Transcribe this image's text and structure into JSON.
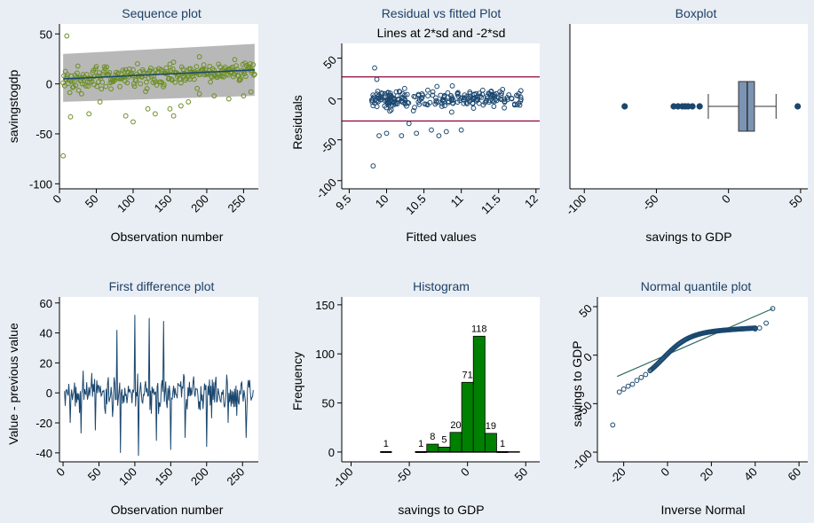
{
  "chart_data": [
    {
      "type": "scatter",
      "title": "Sequence plot",
      "xlabel": "Observation number",
      "ylabel": "savingstogdp",
      "xlim": [
        0,
        270
      ],
      "ylim": [
        -105,
        60
      ],
      "xticks": [
        0,
        50,
        100,
        150,
        200,
        250
      ],
      "yticks": [
        50,
        0,
        -50,
        -100
      ],
      "fitted_line": {
        "x": [
          5,
          265
        ],
        "y": [
          5,
          14
        ]
      },
      "ci_band": {
        "x": [
          5,
          265
        ],
        "upper": [
          30,
          40
        ],
        "lower": [
          -18,
          -12
        ]
      },
      "outlier_points": [
        [
          5,
          -72
        ],
        [
          10,
          48
        ],
        [
          15,
          -33
        ],
        [
          30,
          -10
        ],
        [
          40,
          -30
        ],
        [
          55,
          -18
        ],
        [
          70,
          -5
        ],
        [
          90,
          -32
        ],
        [
          100,
          -38
        ],
        [
          120,
          -25
        ],
        [
          130,
          -30
        ],
        [
          150,
          -25
        ],
        [
          155,
          -32
        ],
        [
          165,
          -22
        ],
        [
          175,
          -18
        ],
        [
          190,
          -10
        ],
        [
          210,
          -12
        ],
        [
          230,
          -15
        ],
        [
          250,
          -12
        ],
        [
          260,
          -8
        ]
      ],
      "point_color": "#6b8e23",
      "band_color": "#b8b8b8",
      "line_color": "#1a476f"
    },
    {
      "type": "scatter",
      "title": "Residual vs fitted Plot",
      "subtitle": "Lines at 2*sd and -2*sd",
      "xlabel": "Fitted values",
      "ylabel": "Residuals",
      "xlim": [
        9.4,
        12.05
      ],
      "ylim": [
        -110,
        68
      ],
      "xticks": [
        9.5,
        10,
        10.5,
        11,
        11.5,
        12
      ],
      "yticks": [
        50,
        0,
        -50,
        -100
      ],
      "reference_lines": [
        27,
        -27
      ],
      "outlier_points": [
        [
          9.82,
          -82
        ],
        [
          9.84,
          38
        ],
        [
          9.87,
          24
        ],
        [
          9.9,
          -45
        ],
        [
          10.0,
          -42
        ],
        [
          10.2,
          -45
        ],
        [
          10.3,
          -30
        ],
        [
          10.4,
          -42
        ],
        [
          10.6,
          -38
        ],
        [
          10.7,
          -45
        ],
        [
          10.8,
          -40
        ],
        [
          11.0,
          -38
        ]
      ],
      "point_color": "#1a476f",
      "line_color": "#90003a"
    },
    {
      "type": "box",
      "title": "Boxplot",
      "xlabel": "savings to GDP",
      "xlim": [
        -110,
        55
      ],
      "xticks": [
        -100,
        -50,
        0,
        50
      ],
      "q1": 7,
      "median": 13,
      "q3": 18,
      "whisker_low": -14,
      "whisker_high": 33,
      "outliers": [
        -72,
        -38,
        -35,
        -32,
        -30,
        -28,
        -25,
        -20,
        48
      ],
      "box_color": "#7b94b4"
    },
    {
      "type": "line",
      "title": "First difference plot",
      "xlabel": "Observation number",
      "ylabel": "Value - previous value",
      "xlim": [
        -5,
        272
      ],
      "ylim": [
        -46,
        64
      ],
      "xticks": [
        0,
        50,
        100,
        150,
        200,
        250
      ],
      "yticks": [
        60,
        40,
        20,
        0,
        -20,
        -40
      ],
      "spikes_high": [
        [
          45,
          48
        ],
        [
          75,
          42
        ],
        [
          100,
          52
        ],
        [
          120,
          50
        ],
        [
          140,
          48
        ],
        [
          170,
          45
        ],
        [
          200,
          46
        ],
        [
          230,
          35
        ],
        [
          255,
          48
        ]
      ],
      "spikes_low": [
        [
          10,
          -20
        ],
        [
          25,
          -27
        ],
        [
          45,
          -25
        ],
        [
          80,
          -40
        ],
        [
          105,
          -42
        ],
        [
          130,
          -32
        ],
        [
          150,
          -38
        ],
        [
          170,
          -30
        ],
        [
          200,
          -36
        ],
        [
          230,
          -20
        ],
        [
          255,
          -30
        ]
      ],
      "line_color": "#1a476f"
    },
    {
      "type": "bar",
      "title": "Histogram",
      "xlabel": "savings to GDP",
      "ylabel": "Frequency",
      "xlim": [
        -108,
        62
      ],
      "ylim": [
        -10,
        158
      ],
      "xticks": [
        -100,
        -50,
        0,
        50
      ],
      "yticks": [
        0,
        50,
        100,
        150
      ],
      "bins": [
        {
          "x0": -75,
          "x1": -65,
          "count": 1,
          "label": "1"
        },
        {
          "x0": -45,
          "x1": -35,
          "count": 1,
          "label": "1"
        },
        {
          "x0": -35,
          "x1": -25,
          "count": 8,
          "label": "8"
        },
        {
          "x0": -25,
          "x1": -15,
          "count": 5,
          "label": "5"
        },
        {
          "x0": -15,
          "x1": -5,
          "count": 20,
          "label": "20"
        },
        {
          "x0": -5,
          "x1": 5,
          "count": 71,
          "label": "71"
        },
        {
          "x0": 5,
          "x1": 15,
          "count": 118,
          "label": "118"
        },
        {
          "x0": 15,
          "x1": 25,
          "count": 19,
          "label": "19"
        },
        {
          "x0": 25,
          "x1": 35,
          "count": 1,
          "label": "1"
        }
      ],
      "bar_color": "#008000"
    },
    {
      "type": "scatter",
      "title": "Normal quantile plot",
      "xlabel": "Inverse Normal",
      "ylabel": "savings to GDP",
      "xlim": [
        -32,
        64
      ],
      "ylim": [
        -110,
        60
      ],
      "xticks": [
        -20,
        0,
        20,
        40,
        60
      ],
      "yticks": [
        50,
        0,
        -50,
        -100
      ],
      "reference_line": {
        "x": [
          -23,
          48
        ],
        "y": [
          -22,
          48
        ]
      },
      "outlier_points": [
        [
          -25,
          -72
        ],
        [
          -22,
          -38
        ],
        [
          -20,
          -35
        ],
        [
          -18,
          -32
        ],
        [
          -16,
          -30
        ],
        [
          -14,
          -26
        ],
        [
          -12,
          -23
        ],
        [
          -10,
          -20
        ],
        [
          40,
          27
        ],
        [
          42,
          28
        ],
        [
          45,
          33
        ],
        [
          48,
          48
        ]
      ],
      "point_color": "#1a476f"
    }
  ]
}
